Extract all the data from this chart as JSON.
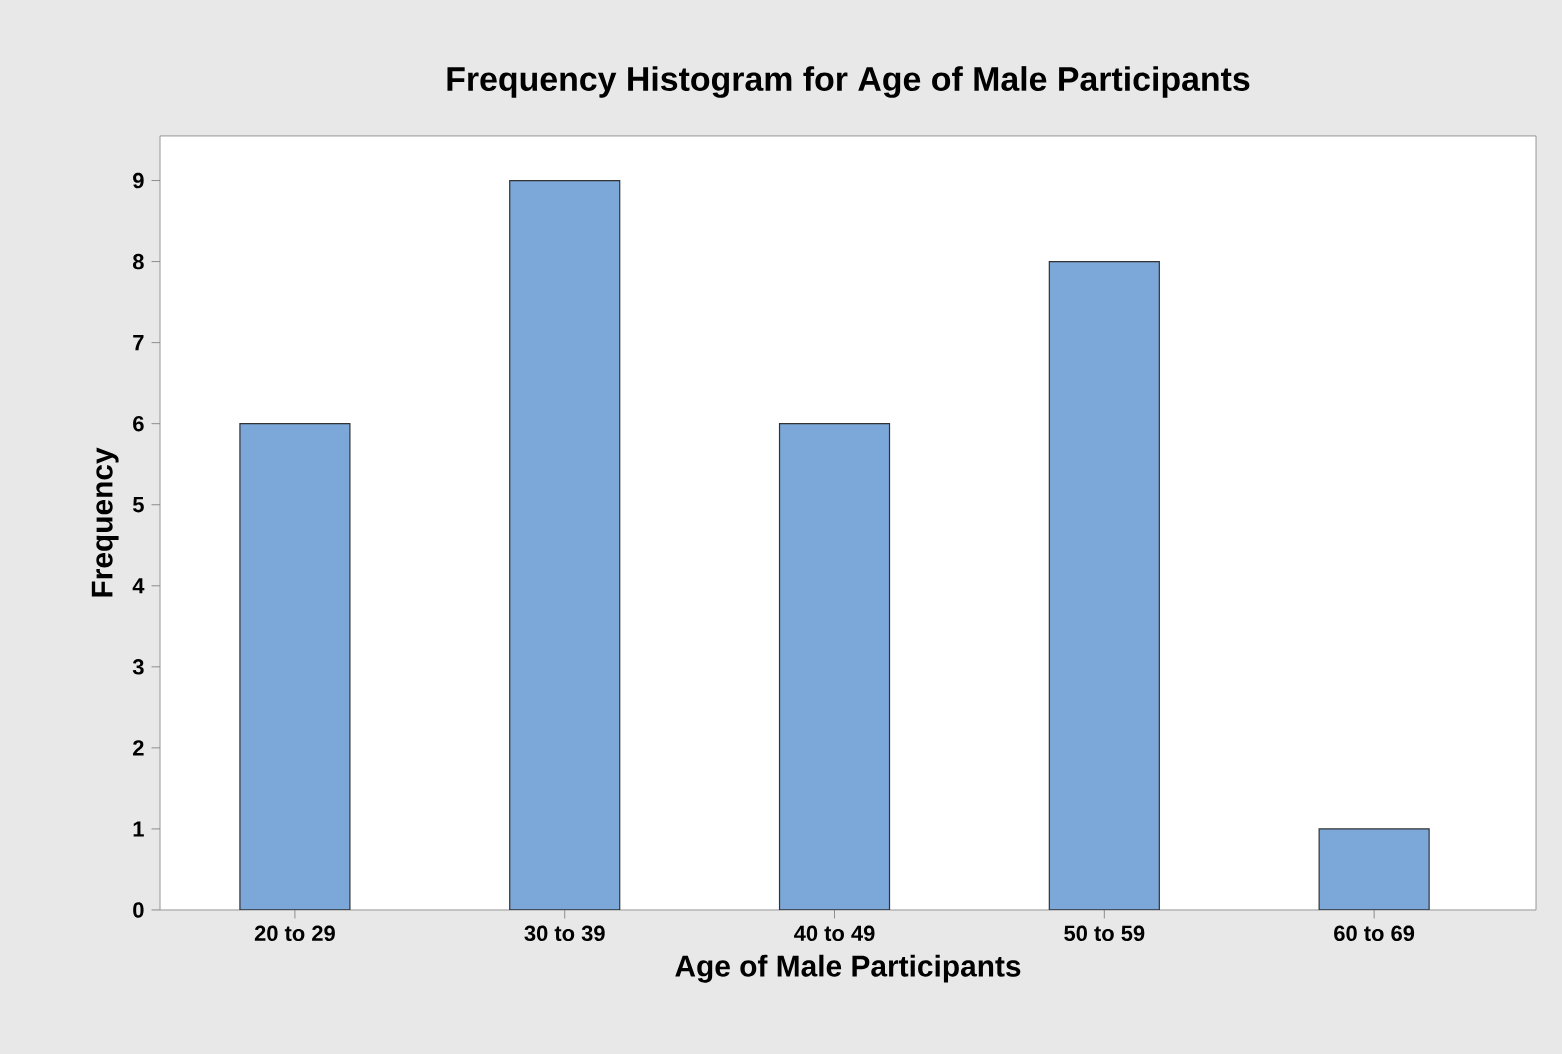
{
  "chart_data": {
    "type": "bar",
    "title": "Frequency Histogram for Age of Male Participants",
    "xlabel": "Age of Male Participants",
    "ylabel": "Frequency",
    "categories": [
      "20 to 29",
      "30 to 39",
      "40 to 49",
      "50 to 59",
      "60 to 69"
    ],
    "values": [
      6,
      9,
      6,
      8,
      1
    ],
    "color": "#7ba7d9",
    "ylim": [
      0,
      9.55
    ],
    "yticks": [
      0,
      1,
      2,
      3,
      4,
      5,
      6,
      7,
      8,
      9
    ],
    "grid": false
  }
}
